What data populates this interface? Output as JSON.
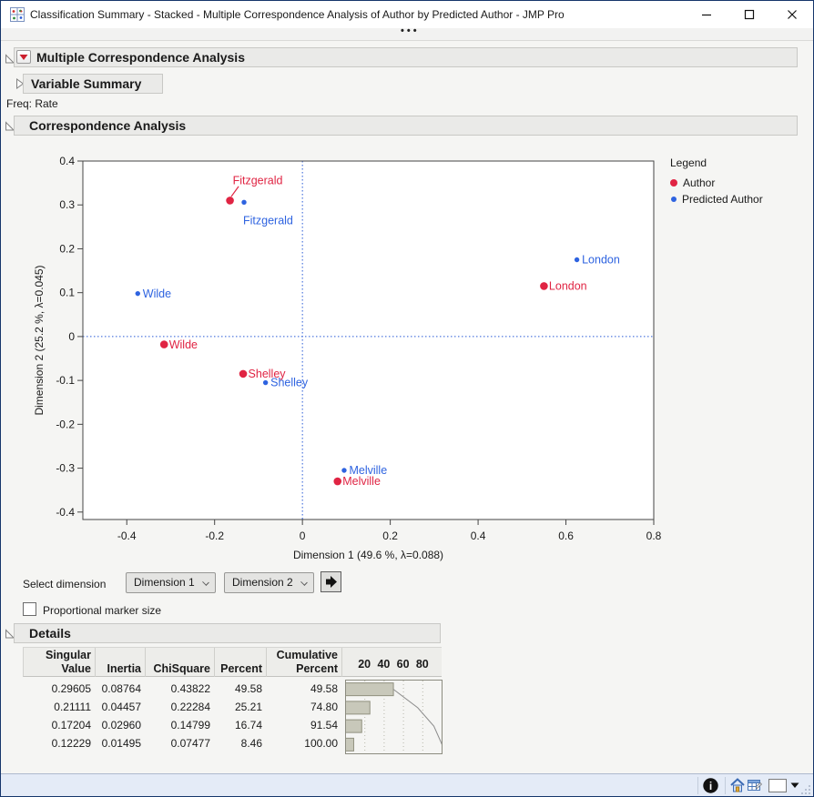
{
  "window": {
    "title": "Classification Summary - Stacked - Multiple Correspondence Analysis of Author by Predicted Author - JMP Pro",
    "ribbon_dots": "•••"
  },
  "outline": {
    "mca_title": "Multiple Correspondence Analysis",
    "variable_summary_title": "Variable Summary",
    "freq_note": "Freq: Rate",
    "ca_title": "Correspondence Analysis",
    "details_title": "Details"
  },
  "chart_data": {
    "type": "scatter",
    "title": "",
    "xlabel": "Dimension 1  (49.6 %, λ=0.088)",
    "ylabel": "Dimension 2  (25.2 %, λ=0.045)",
    "xlim": [
      -0.5,
      0.8
    ],
    "ylim": [
      -0.417,
      0.4
    ],
    "x_ticks": [
      "-0.4",
      "-0.2",
      "0",
      "0.2",
      "0.4",
      "0.6",
      "0.8"
    ],
    "y_ticks": [
      "0.4",
      "0.3",
      "0.2",
      "0.1",
      "0",
      "-0.1",
      "-0.2",
      "-0.3",
      "-0.4"
    ],
    "grid": false,
    "reference_lines": {
      "x": 0,
      "y": 0,
      "style": "dotted",
      "color": "#2a5bd7"
    },
    "legend": {
      "title": "Legend",
      "position": "right",
      "entries": [
        {
          "label": "Author",
          "color": "#e02443"
        },
        {
          "label": "Predicted Author",
          "color": "#2e63e0"
        }
      ]
    },
    "series": [
      {
        "name": "Author",
        "color": "#e02443",
        "marker": "large-dot",
        "points": [
          {
            "label": "Fitzgerald",
            "x": -0.165,
            "y": 0.31,
            "label_pos": "callout-above"
          },
          {
            "label": "Wilde",
            "x": -0.315,
            "y": -0.018,
            "label_pos": "right"
          },
          {
            "label": "Shelley",
            "x": -0.135,
            "y": -0.085,
            "label_pos": "right"
          },
          {
            "label": "Melville",
            "x": 0.08,
            "y": -0.33,
            "label_pos": "right"
          },
          {
            "label": "London",
            "x": 0.55,
            "y": 0.115,
            "label_pos": "right"
          }
        ]
      },
      {
        "name": "Predicted Author",
        "color": "#2e63e0",
        "marker": "small-dot",
        "points": [
          {
            "label": "Fitzgerald",
            "x": -0.133,
            "y": 0.306,
            "label_pos": "below"
          },
          {
            "label": "Wilde",
            "x": -0.375,
            "y": 0.098,
            "label_pos": "right"
          },
          {
            "label": "Shelley",
            "x": -0.084,
            "y": -0.105,
            "label_pos": "right"
          },
          {
            "label": "Melville",
            "x": 0.095,
            "y": -0.305,
            "label_pos": "right"
          },
          {
            "label": "London",
            "x": 0.625,
            "y": 0.175,
            "label_pos": "right"
          }
        ]
      }
    ]
  },
  "controls": {
    "select_dimension_label": "Select dimension",
    "dimension_x_value": "Dimension 1",
    "dimension_y_value": "Dimension 2",
    "proportional_label": "Proportional marker size",
    "proportional_checked": false
  },
  "details_table": {
    "columns": [
      {
        "top": "Singular",
        "bottom": "Value"
      },
      {
        "top": "",
        "bottom": "Inertia"
      },
      {
        "top": "",
        "bottom": "ChiSquare"
      },
      {
        "top": "",
        "bottom": "Percent"
      },
      {
        "top": "Cumulative",
        "bottom": "Percent"
      }
    ],
    "bar_axis_ticks": [
      "20",
      "40",
      "60",
      "80"
    ],
    "rows": [
      [
        "0.29605",
        "0.08764",
        "0.43822",
        "49.58",
        "49.58"
      ],
      [
        "0.21111",
        "0.04457",
        "0.22284",
        "25.21",
        "74.80"
      ],
      [
        "0.17204",
        "0.02960",
        "0.14799",
        "16.74",
        "91.54"
      ],
      [
        "0.12229",
        "0.01495",
        "0.07477",
        "8.46",
        "100.00"
      ]
    ],
    "percent_values": [
      49.58,
      25.21,
      16.74,
      8.46
    ],
    "cumulative_values": [
      49.58,
      74.8,
      91.54,
      100.0
    ],
    "bar_color": "#c8c8ba"
  },
  "colors": {
    "author_red": "#e02443",
    "predicted_blue": "#2e63e0",
    "reference_blue": "#2a5bd7"
  }
}
